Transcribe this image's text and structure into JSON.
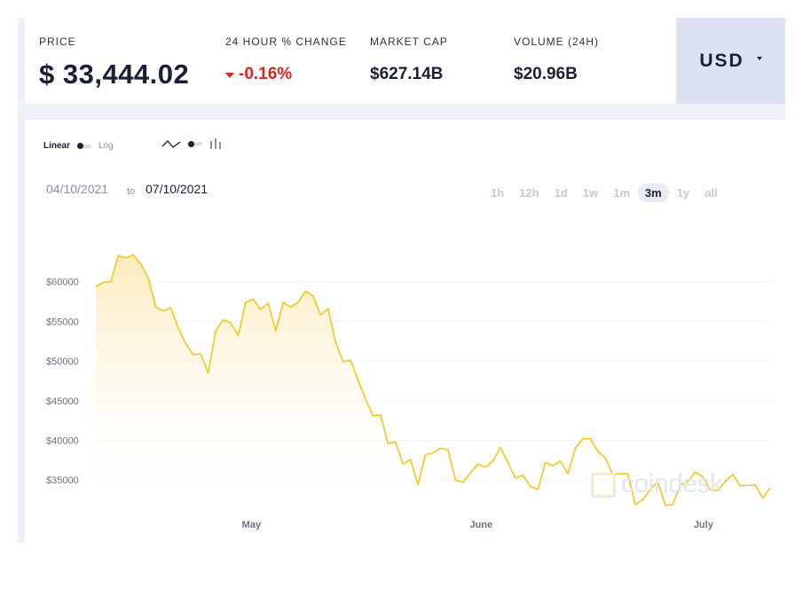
{
  "header": {
    "price_label": "PRICE",
    "price_value": "$ 33,444.02",
    "change_label": "24 HOUR % CHANGE",
    "change_value": "-0.16%",
    "mcap_label": "MARKET CAP",
    "mcap_value": "$627.14B",
    "volume_label": "VOLUME (24H)",
    "volume_value": "$20.96B",
    "currency": "USD"
  },
  "controls": {
    "scale_linear": "Linear",
    "scale_log": "Log",
    "date_from": "04/10/2021",
    "date_to_word": "to",
    "date_to": "07/10/2021",
    "ranges": [
      "1h",
      "12h",
      "1d",
      "1w",
      "1m",
      "3m",
      "1y",
      "all"
    ],
    "active_range": "3m"
  },
  "watermark": "coindesk",
  "colors": {
    "line": "#f5c518",
    "fill_top": "#fde9b6",
    "negative": "#e0241b",
    "currency_bg": "#dde2f3"
  },
  "chart_data": {
    "type": "area",
    "x_start": "2021-04-10",
    "x_end": "2021-07-10",
    "ylim": [
      31000,
      67000
    ],
    "y_ticks": [
      "$60000",
      "$55000",
      "$50000",
      "$45000",
      "$40000",
      "$35000"
    ],
    "x_ticks": [
      "May",
      "June",
      "July"
    ],
    "grid": true,
    "series": [
      {
        "values": [
          59400,
          59900,
          60000,
          63300,
          63000,
          63400,
          62200,
          60500,
          56800,
          56300,
          56700,
          54200,
          52200,
          50800,
          50900,
          48500,
          53800,
          55200,
          54800,
          53200,
          57400,
          57800,
          56500,
          57300,
          53800,
          57400,
          56800,
          57400,
          58800,
          58200,
          55800,
          56600,
          52400,
          49900,
          50100,
          47600,
          45200,
          43100,
          43200,
          39600,
          39800,
          37000,
          37600,
          34400,
          38200,
          38400,
          39000,
          38800,
          35000,
          34700,
          35900,
          37000,
          36600,
          37400,
          39100,
          37200,
          35200,
          35600,
          34200,
          33800,
          37200,
          36800,
          37400,
          35800,
          39000,
          40200,
          40200,
          38600,
          37800,
          35700,
          35800,
          35800,
          31900,
          32500,
          33800,
          34800,
          31800,
          31900,
          34400,
          34800,
          36000,
          35400,
          33800,
          33700,
          34800,
          35700,
          34300,
          34300,
          34400,
          32700,
          34000
        ]
      }
    ]
  }
}
